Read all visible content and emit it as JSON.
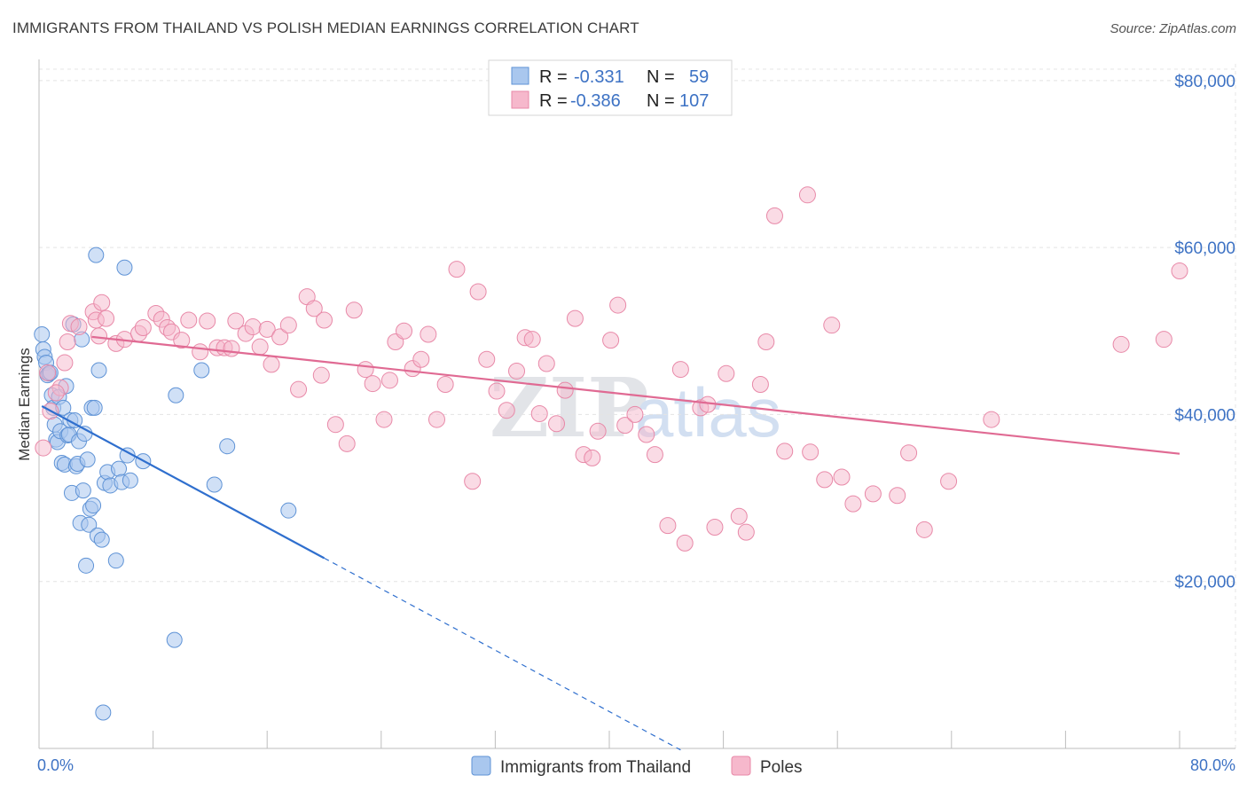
{
  "header": {
    "title": "IMMIGRANTS FROM THAILAND VS POLISH MEDIAN EARNINGS CORRELATION CHART",
    "source": "Source: ZipAtlas.com"
  },
  "colors": {
    "thailand": "#a9c7ee",
    "thailand_stroke": "#5f93d6",
    "thailand_line": "#2f6fce",
    "poles": "#f6b8cc",
    "poles_stroke": "#e889a8",
    "poles_line": "#e06a93",
    "accent": "#3d72c4",
    "grid": "#e4e4e4"
  },
  "legend": {
    "rows": [
      {
        "r_label": "R =",
        "r_value": "-0.331",
        "n_label": "N =",
        "n_value": "59"
      },
      {
        "r_label": "R =",
        "r_value": "-0.386",
        "n_label": "N =",
        "n_value": "107"
      }
    ]
  },
  "watermark": {
    "part1": "ZIP",
    "part2": "atlas"
  },
  "chart_data": {
    "type": "scatter",
    "title": "IMMIGRANTS FROM THAILAND VS POLISH MEDIAN EARNINGS CORRELATION CHART",
    "xlabel": "",
    "ylabel": "Median Earnings",
    "xlim": [
      0,
      80
    ],
    "ylim": [
      0,
      82000
    ],
    "x_tick_labels": [
      "0.0%",
      "80.0%"
    ],
    "y_ticks": [
      20000,
      40000,
      60000,
      80000
    ],
    "y_tick_labels": [
      "$20,000",
      "$40,000",
      "$60,000",
      "$80,000"
    ],
    "legend_position": "top-center",
    "series": [
      {
        "name": "Immigrants from Thailand",
        "r": -0.331,
        "n": 59,
        "trend": {
          "x0": 0.2,
          "y0": 41000,
          "x1": 20.0,
          "y1": 22800,
          "dash_to_x": 45.0
        },
        "points": [
          [
            0.2,
            49600
          ],
          [
            0.3,
            47800
          ],
          [
            0.4,
            46900
          ],
          [
            0.5,
            46200
          ],
          [
            0.6,
            44700
          ],
          [
            0.7,
            44900
          ],
          [
            0.8,
            45000
          ],
          [
            0.9,
            42300
          ],
          [
            1.0,
            40800
          ],
          [
            1.1,
            38800
          ],
          [
            1.2,
            37000
          ],
          [
            1.3,
            36700
          ],
          [
            1.4,
            42100
          ],
          [
            1.5,
            38000
          ],
          [
            1.6,
            34200
          ],
          [
            1.7,
            40800
          ],
          [
            1.8,
            34000
          ],
          [
            1.9,
            43400
          ],
          [
            2.0,
            37500
          ],
          [
            2.1,
            37600
          ],
          [
            2.2,
            39300
          ],
          [
            2.3,
            30600
          ],
          [
            2.4,
            50800
          ],
          [
            2.5,
            39300
          ],
          [
            2.6,
            33800
          ],
          [
            2.7,
            34100
          ],
          [
            2.8,
            36800
          ],
          [
            2.9,
            27000
          ],
          [
            3.0,
            49000
          ],
          [
            3.1,
            30900
          ],
          [
            3.2,
            37700
          ],
          [
            3.3,
            21900
          ],
          [
            3.4,
            34600
          ],
          [
            3.5,
            26800
          ],
          [
            3.6,
            28700
          ],
          [
            3.7,
            40800
          ],
          [
            3.8,
            29100
          ],
          [
            3.9,
            40800
          ],
          [
            4.0,
            59100
          ],
          [
            4.1,
            25500
          ],
          [
            4.2,
            45300
          ],
          [
            4.4,
            25000
          ],
          [
            4.6,
            31800
          ],
          [
            4.8,
            33100
          ],
          [
            5.0,
            31500
          ],
          [
            5.4,
            22500
          ],
          [
            5.6,
            33500
          ],
          [
            5.8,
            31900
          ],
          [
            6.0,
            57600
          ],
          [
            6.2,
            35100
          ],
          [
            6.4,
            32100
          ],
          [
            7.3,
            34400
          ],
          [
            9.5,
            13000
          ],
          [
            9.6,
            42300
          ],
          [
            11.4,
            45300
          ],
          [
            12.3,
            31600
          ],
          [
            13.2,
            36200
          ],
          [
            17.5,
            28500
          ],
          [
            4.5,
            4300
          ]
        ]
      },
      {
        "name": "Poles",
        "r": -0.386,
        "n": 107,
        "trend": {
          "x0": 3.7,
          "y0": 49300,
          "x1": 80.0,
          "y1": 35300
        },
        "points": [
          [
            0.3,
            36000
          ],
          [
            0.8,
            40400
          ],
          [
            1.5,
            43200
          ],
          [
            1.8,
            46200
          ],
          [
            2.0,
            48700
          ],
          [
            2.2,
            50900
          ],
          [
            2.8,
            50500
          ],
          [
            3.8,
            52300
          ],
          [
            4.0,
            51300
          ],
          [
            4.2,
            49400
          ],
          [
            4.4,
            53400
          ],
          [
            4.7,
            51500
          ],
          [
            5.4,
            48500
          ],
          [
            6.0,
            49000
          ],
          [
            7.0,
            49700
          ],
          [
            7.3,
            50400
          ],
          [
            8.2,
            52100
          ],
          [
            8.6,
            51400
          ],
          [
            9.0,
            50400
          ],
          [
            9.3,
            49900
          ],
          [
            10.0,
            48900
          ],
          [
            10.5,
            51300
          ],
          [
            11.3,
            47500
          ],
          [
            11.8,
            51200
          ],
          [
            12.5,
            48000
          ],
          [
            13.0,
            48000
          ],
          [
            13.5,
            47900
          ],
          [
            13.8,
            51200
          ],
          [
            14.5,
            49700
          ],
          [
            15.0,
            50500
          ],
          [
            15.5,
            48100
          ],
          [
            16.0,
            50200
          ],
          [
            16.3,
            46000
          ],
          [
            16.9,
            49300
          ],
          [
            17.5,
            50700
          ],
          [
            18.2,
            43000
          ],
          [
            18.8,
            54100
          ],
          [
            19.3,
            52700
          ],
          [
            19.8,
            44700
          ],
          [
            20.0,
            51300
          ],
          [
            20.8,
            38800
          ],
          [
            21.6,
            36500
          ],
          [
            22.1,
            52500
          ],
          [
            22.9,
            45400
          ],
          [
            23.4,
            43700
          ],
          [
            24.2,
            39400
          ],
          [
            24.6,
            44100
          ],
          [
            25.0,
            48700
          ],
          [
            25.6,
            50000
          ],
          [
            26.2,
            45500
          ],
          [
            26.8,
            46600
          ],
          [
            27.3,
            49600
          ],
          [
            27.9,
            39400
          ],
          [
            28.5,
            43600
          ],
          [
            29.3,
            57400
          ],
          [
            30.4,
            32000
          ],
          [
            30.8,
            54700
          ],
          [
            31.4,
            46600
          ],
          [
            32.1,
            42800
          ],
          [
            32.8,
            40500
          ],
          [
            33.5,
            45200
          ],
          [
            34.1,
            49200
          ],
          [
            34.6,
            49000
          ],
          [
            35.1,
            40100
          ],
          [
            35.6,
            46100
          ],
          [
            36.3,
            38900
          ],
          [
            36.9,
            42900
          ],
          [
            37.6,
            51500
          ],
          [
            38.2,
            35200
          ],
          [
            38.8,
            34800
          ],
          [
            39.2,
            38000
          ],
          [
            40.1,
            48900
          ],
          [
            40.6,
            53100
          ],
          [
            41.1,
            38700
          ],
          [
            41.8,
            40000
          ],
          [
            42.6,
            37600
          ],
          [
            43.2,
            35200
          ],
          [
            44.1,
            26700
          ],
          [
            45.0,
            45400
          ],
          [
            45.3,
            24600
          ],
          [
            46.4,
            40800
          ],
          [
            46.9,
            41200
          ],
          [
            47.4,
            26500
          ],
          [
            48.2,
            44900
          ],
          [
            49.1,
            27800
          ],
          [
            49.6,
            25900
          ],
          [
            50.6,
            43600
          ],
          [
            51.0,
            48700
          ],
          [
            51.6,
            63800
          ],
          [
            52.3,
            35600
          ],
          [
            53.9,
            66300
          ],
          [
            54.1,
            35500
          ],
          [
            55.1,
            32200
          ],
          [
            55.6,
            50700
          ],
          [
            56.3,
            32500
          ],
          [
            57.1,
            29300
          ],
          [
            58.5,
            30500
          ],
          [
            60.2,
            30300
          ],
          [
            61.0,
            35400
          ],
          [
            62.1,
            26200
          ],
          [
            63.8,
            32000
          ],
          [
            66.8,
            39400
          ],
          [
            75.9,
            48400
          ],
          [
            78.9,
            49000
          ],
          [
            80.0,
            57200
          ],
          [
            0.6,
            45000
          ],
          [
            1.2,
            42600
          ]
        ]
      }
    ]
  }
}
